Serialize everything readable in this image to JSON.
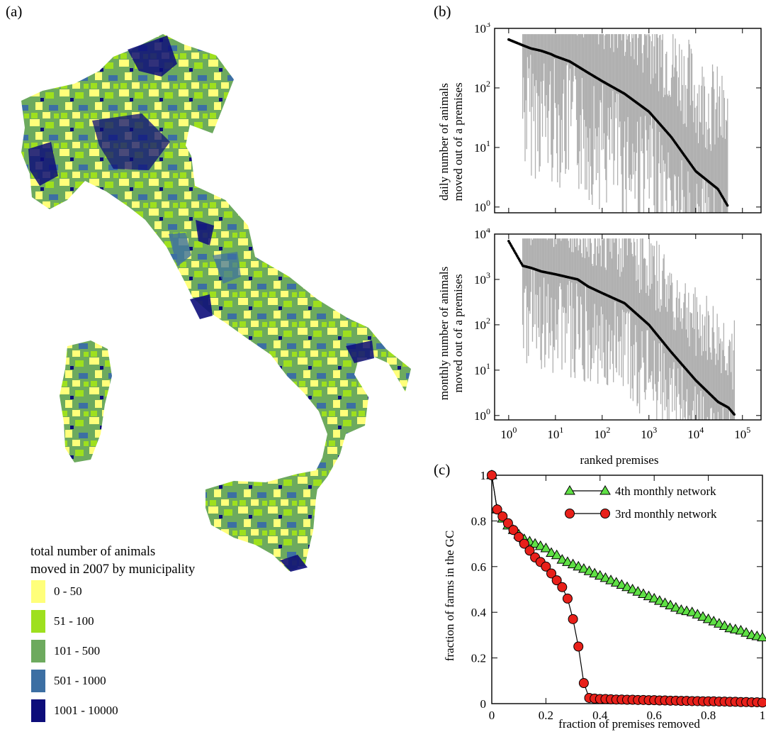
{
  "panels": {
    "a": "(a)",
    "b": "(b)",
    "c": "(c)"
  },
  "legend": {
    "title_line1": "total number of animals",
    "title_line2": "moved in 2007 by municipality",
    "items": [
      {
        "label": "0 - 50",
        "color": "#ffff7a"
      },
      {
        "label": "51 - 100",
        "color": "#9ee01e"
      },
      {
        "label": "101 - 500",
        "color": "#6daa5e"
      },
      {
        "label": "501 - 1000",
        "color": "#3c6fa3"
      },
      {
        "label": "1001 - 10000",
        "color": "#0d0d7a"
      }
    ]
  },
  "chart_data": [
    {
      "type": "scatter",
      "panel": "(b) top",
      "ylabel_line1": "daily number of animals",
      "ylabel_line2": "moved out of a premises",
      "xscale": "log",
      "yscale": "log",
      "xlim": [
        0.5,
        250000
      ],
      "ylim": [
        0.8,
        1000
      ],
      "y_tick_labels": [
        "10^0",
        "10^1",
        "10^2",
        "10^3"
      ],
      "x_tick_labels_shown": false,
      "points": [
        [
          1,
          650
        ],
        [
          2,
          520
        ],
        [
          3,
          460
        ],
        [
          5,
          420
        ],
        [
          8,
          370
        ],
        [
          10,
          340
        ],
        [
          20,
          280
        ],
        [
          50,
          180
        ],
        [
          100,
          130
        ],
        [
          300,
          80
        ],
        [
          1000,
          40
        ],
        [
          3000,
          15
        ],
        [
          10000,
          4
        ],
        [
          30000,
          2
        ],
        [
          50000,
          1
        ]
      ],
      "marker_color": "#000000",
      "errorbar_color": "#b0b0b0"
    },
    {
      "type": "scatter",
      "panel": "(b) bottom",
      "ylabel_line1": "monthly number of animals",
      "ylabel_line2": "moved out of a premises",
      "xlabel": "ranked premises",
      "xscale": "log",
      "yscale": "log",
      "xlim": [
        0.5,
        250000
      ],
      "ylim": [
        0.8,
        10000
      ],
      "y_tick_labels": [
        "10^0",
        "10^1",
        "10^2",
        "10^3",
        "10^4"
      ],
      "x_tick_labels": [
        "10^0",
        "10^1",
        "10^2",
        "10^3",
        "10^4",
        "10^5"
      ],
      "points": [
        [
          1,
          7000
        ],
        [
          2,
          2000
        ],
        [
          3,
          1800
        ],
        [
          5,
          1500
        ],
        [
          10,
          1300
        ],
        [
          30,
          1000
        ],
        [
          50,
          700
        ],
        [
          100,
          500
        ],
        [
          300,
          300
        ],
        [
          1000,
          100
        ],
        [
          3000,
          25
        ],
        [
          10000,
          6
        ],
        [
          30000,
          2
        ],
        [
          50000,
          1.5
        ],
        [
          70000,
          1
        ]
      ],
      "marker_color": "#000000",
      "errorbar_color": "#b0b0b0"
    },
    {
      "type": "line",
      "panel": "(c)",
      "xlabel": "fraction of premises removed",
      "ylabel": "fraction of farms in the GC",
      "xlim": [
        0,
        1
      ],
      "ylim": [
        0,
        1
      ],
      "x_ticks": [
        0,
        0.2,
        0.4,
        0.6,
        0.8,
        1
      ],
      "x_tick_labels": [
        "0",
        "0.2",
        "0.4",
        "0.6",
        "0.8",
        "1"
      ],
      "y_ticks": [
        0,
        0.2,
        0.4,
        0.6,
        0.8,
        1
      ],
      "y_tick_labels": [
        "0",
        "0.2",
        "0.4",
        "0.6",
        "0.8",
        "1"
      ],
      "legend_position": "top-right",
      "series": [
        {
          "name": "4th monthly network",
          "marker": "triangle",
          "color": "#5fe045",
          "x": [
            0,
            0.02,
            0.04,
            0.06,
            0.08,
            0.1,
            0.12,
            0.14,
            0.16,
            0.18,
            0.2,
            0.22,
            0.24,
            0.26,
            0.28,
            0.3,
            0.32,
            0.34,
            0.36,
            0.38,
            0.4,
            0.42,
            0.44,
            0.46,
            0.48,
            0.5,
            0.52,
            0.54,
            0.56,
            0.58,
            0.6,
            0.62,
            0.64,
            0.66,
            0.68,
            0.7,
            0.72,
            0.74,
            0.76,
            0.78,
            0.8,
            0.82,
            0.84,
            0.86,
            0.88,
            0.9,
            0.92,
            0.94,
            0.96,
            0.98,
            1.0
          ],
          "y": [
            1.0,
            0.85,
            0.81,
            0.78,
            0.76,
            0.74,
            0.72,
            0.71,
            0.7,
            0.69,
            0.68,
            0.66,
            0.65,
            0.63,
            0.62,
            0.61,
            0.6,
            0.59,
            0.58,
            0.57,
            0.56,
            0.55,
            0.54,
            0.53,
            0.52,
            0.51,
            0.5,
            0.49,
            0.48,
            0.47,
            0.46,
            0.45,
            0.44,
            0.43,
            0.42,
            0.41,
            0.405,
            0.4,
            0.39,
            0.38,
            0.37,
            0.36,
            0.35,
            0.34,
            0.33,
            0.325,
            0.32,
            0.31,
            0.3,
            0.295,
            0.29
          ]
        },
        {
          "name": "3rd monthly network",
          "marker": "circle",
          "color": "#e8201a",
          "x": [
            0,
            0.02,
            0.04,
            0.06,
            0.08,
            0.1,
            0.12,
            0.14,
            0.16,
            0.18,
            0.2,
            0.22,
            0.24,
            0.26,
            0.28,
            0.3,
            0.32,
            0.34,
            0.36,
            0.38,
            0.4,
            0.42,
            0.44,
            0.46,
            0.48,
            0.5,
            0.52,
            0.54,
            0.56,
            0.58,
            0.6,
            0.62,
            0.64,
            0.66,
            0.68,
            0.7,
            0.72,
            0.74,
            0.76,
            0.78,
            0.8,
            0.82,
            0.84,
            0.86,
            0.88,
            0.9,
            0.92,
            0.94,
            0.96,
            0.98,
            1.0
          ],
          "y": [
            1.0,
            0.85,
            0.82,
            0.79,
            0.76,
            0.73,
            0.7,
            0.67,
            0.64,
            0.62,
            0.6,
            0.57,
            0.54,
            0.51,
            0.46,
            0.37,
            0.25,
            0.09,
            0.025,
            0.022,
            0.02,
            0.02,
            0.019,
            0.018,
            0.018,
            0.017,
            0.017,
            0.016,
            0.016,
            0.015,
            0.015,
            0.014,
            0.014,
            0.013,
            0.013,
            0.012,
            0.012,
            0.011,
            0.011,
            0.01,
            0.01,
            0.01,
            0.009,
            0.009,
            0.008,
            0.008,
            0.007,
            0.007,
            0.006,
            0.006,
            0.005
          ]
        }
      ]
    }
  ]
}
